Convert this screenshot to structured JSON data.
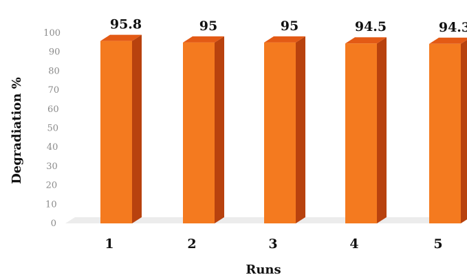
{
  "chart_data": {
    "type": "bar",
    "style": "3d-column",
    "categories": [
      "1",
      "2",
      "3",
      "4",
      "5"
    ],
    "values": [
      95.8,
      95,
      95,
      94.5,
      94.3
    ],
    "data_labels": [
      "95.8",
      "95",
      "95",
      "94.5",
      "94.3"
    ],
    "xlabel": "Runs",
    "ylabel": "Degradiation %",
    "ylim": [
      0,
      100
    ],
    "yticks": [
      "0",
      "10",
      "20",
      "30",
      "40",
      "50",
      "60",
      "70",
      "80",
      "90",
      "100"
    ],
    "grid": false,
    "legend": "none",
    "colors": {
      "bar_front": "#f47a1f",
      "bar_side": "#b8420e",
      "bar_top": "#e35a15",
      "floor": "#ececec"
    }
  }
}
